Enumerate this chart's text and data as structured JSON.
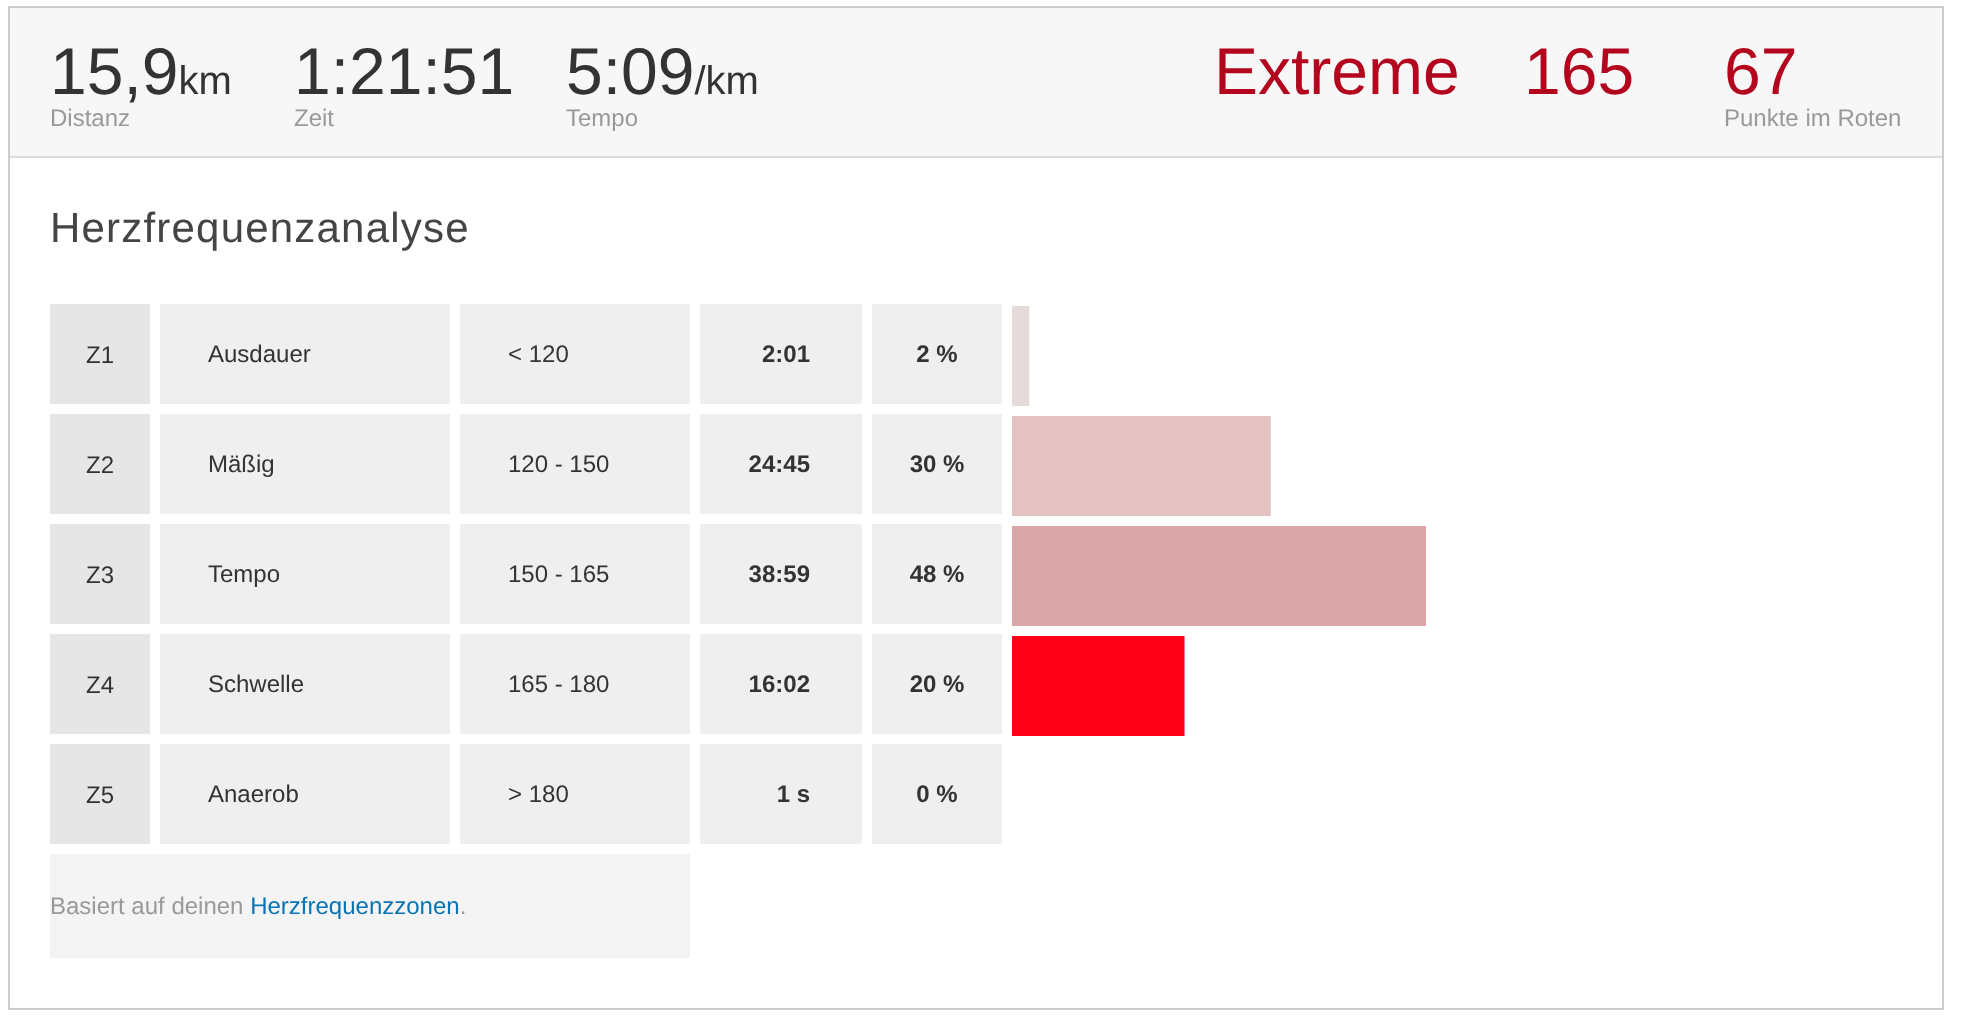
{
  "chart_data": [
    {
      "type": "other",
      "annotations": [
        "15,9km",
        "Distanz",
        "1:21:51",
        "Zeit",
        "5:09/km",
        "Tempo",
        "Extreme",
        "165",
        "67",
        "Punkte im Roten"
      ]
    },
    {
      "type": "bar",
      "orientation": "horizontal",
      "title": "Herzfrequenzanalyse",
      "categories": [
        "Z1",
        "Z2",
        "Z3",
        "Z4",
        "Z5"
      ],
      "values": [
        2,
        30,
        48,
        20,
        0
      ],
      "colors": [
        "#e6d9da",
        "#e4c2c2",
        "#d9a7a8",
        "#ff0019",
        null
      ],
      "value_labels": [
        "2 %",
        "30 %",
        "48 %",
        "20 %",
        "0 %"
      ],
      "tick_labels": "y",
      "annotations": [
        "Ausdauer",
        "< 120",
        "2:01",
        "Mäßig",
        "120 - 150",
        "24:45",
        "Tempo",
        "150 - 165",
        "38:59",
        "Schwelle",
        "165 - 180",
        "16:02",
        "Anaerob",
        "> 180",
        "1 s",
        "Basiert auf deinen Herzfrequenzzonen."
      ]
    }
  ]
}
